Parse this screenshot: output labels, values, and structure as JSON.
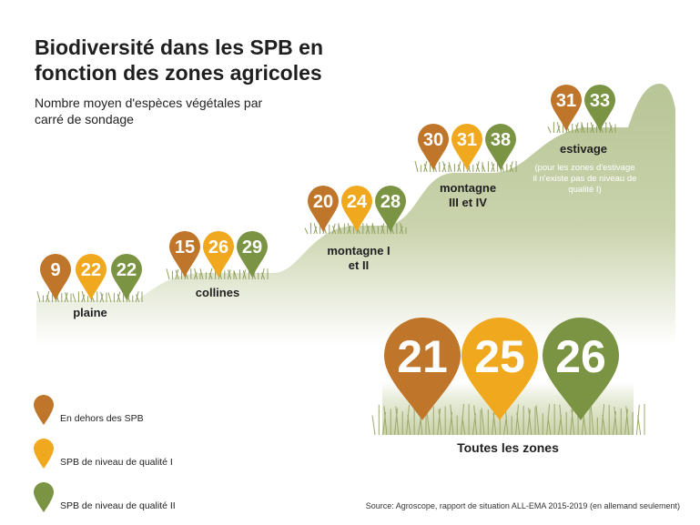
{
  "title": "Biodiversité dans les SPB en fonction des zones agricoles",
  "subtitle": "Nombre moyen d'espèces végétales par carré de sondage",
  "colors": {
    "outside": "#c0762a",
    "q1": "#f0a81e",
    "q2": "#7a9443",
    "ground": "#b8c596"
  },
  "chart_data": {
    "type": "bar",
    "title": "Biodiversité dans les SPB en fonction des zones agricoles",
    "ylabel": "Nombre moyen d'espèces végétales par carré de sondage",
    "categories": [
      "plaine",
      "collines",
      "montagne I et II",
      "montagne III et IV",
      "estivage"
    ],
    "series": [
      {
        "name": "En dehors des SPB",
        "values": [
          9,
          15,
          20,
          30,
          31
        ]
      },
      {
        "name": "SPB de niveau de qualité I",
        "values": [
          22,
          26,
          24,
          31,
          null
        ]
      },
      {
        "name": "SPB de niveau de qualité II",
        "values": [
          22,
          29,
          28,
          38,
          33
        ]
      }
    ],
    "zone_labels": [
      "plaine",
      "collines",
      "montagne\nI et II",
      "montagne\nIII et IV",
      "estivage"
    ],
    "estivage_note": "(pour les zones d'estivage il n'existe pas de niveau de qualité I)",
    "total": {
      "label": "Toutes les zones",
      "values": [
        21,
        25,
        26
      ]
    },
    "legend": [
      "En dehors des SPB",
      "SPB de niveau de qualité I",
      "SPB de niveau de qualité II"
    ]
  },
  "source": "Source: Agroscope, rapport de situation ALL-EMA 2015-2019 (en allemand seulement)"
}
